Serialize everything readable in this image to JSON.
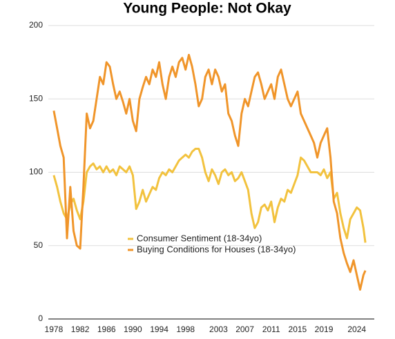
{
  "chart_data": {
    "type": "line",
    "title": "Young People: Not Okay",
    "x": [
      1978,
      1978.5,
      1979,
      1979.5,
      1980,
      1980.5,
      1981,
      1981.5,
      1982,
      1982.5,
      1983,
      1983.5,
      1984,
      1984.5,
      1985,
      1985.5,
      1986,
      1986.5,
      1987,
      1987.5,
      1988,
      1988.5,
      1989,
      1989.5,
      1990,
      1990.5,
      1991,
      1991.5,
      1992,
      1992.5,
      1993,
      1993.5,
      1994,
      1994.5,
      1995,
      1995.5,
      1996,
      1996.5,
      1997,
      1997.5,
      1998,
      1998.5,
      1999,
      1999.5,
      2000,
      2000.5,
      2001,
      2001.5,
      2002,
      2002.5,
      2003,
      2003.5,
      2004,
      2004.5,
      2005,
      2005.5,
      2006,
      2006.5,
      2007,
      2007.5,
      2008,
      2008.5,
      2009,
      2009.5,
      2010,
      2010.5,
      2011,
      2011.5,
      2012,
      2012.5,
      2013,
      2013.5,
      2014,
      2014.5,
      2015,
      2015.5,
      2016,
      2016.5,
      2017,
      2017.5,
      2018,
      2018.5,
      2019,
      2019.5,
      2020,
      2020.5,
      2021,
      2021.5,
      2022,
      2022.5,
      2023,
      2023.5,
      2024,
      2024.5,
      2025,
      2025.3
    ],
    "series": [
      {
        "name": "Consumer Sentiment (18-34yo)",
        "color": "#f2c23e",
        "values": [
          98,
          90,
          80,
          72,
          68,
          78,
          82,
          74,
          68,
          80,
          100,
          104,
          106,
          102,
          104,
          100,
          104,
          100,
          102,
          98,
          104,
          102,
          100,
          104,
          98,
          75,
          80,
          88,
          80,
          85,
          90,
          88,
          96,
          100,
          98,
          102,
          100,
          104,
          108,
          110,
          112,
          110,
          114,
          116,
          116,
          110,
          100,
          94,
          102,
          98,
          92,
          100,
          102,
          98,
          100,
          94,
          96,
          100,
          94,
          88,
          72,
          62,
          66,
          76,
          78,
          74,
          80,
          66,
          76,
          82,
          80,
          88,
          86,
          92,
          98,
          110,
          108,
          104,
          100,
          100,
          100,
          98,
          102,
          96,
          100,
          82,
          86,
          72,
          62,
          55,
          68,
          72,
          76,
          74,
          62,
          52
        ]
      },
      {
        "name": "Buying Conditions for Houses (18-34yo)",
        "color": "#f0952a",
        "values": [
          142,
          130,
          118,
          110,
          55,
          90,
          60,
          50,
          48,
          90,
          140,
          130,
          135,
          150,
          165,
          160,
          175,
          172,
          160,
          150,
          155,
          148,
          140,
          150,
          135,
          128,
          150,
          158,
          165,
          160,
          170,
          165,
          175,
          160,
          150,
          165,
          172,
          165,
          175,
          178,
          170,
          180,
          172,
          160,
          145,
          150,
          165,
          170,
          160,
          170,
          165,
          155,
          160,
          140,
          135,
          125,
          118,
          140,
          150,
          145,
          155,
          165,
          168,
          160,
          150,
          155,
          160,
          150,
          165,
          170,
          160,
          150,
          145,
          150,
          155,
          140,
          135,
          130,
          125,
          120,
          110,
          120,
          125,
          130,
          110,
          80,
          72,
          55,
          45,
          38,
          32,
          40,
          30,
          20,
          30,
          33
        ]
      }
    ],
    "xlim": [
      1977.8,
      2025.6
    ],
    "xticks": [
      1978,
      1982,
      1986,
      1990,
      1994,
      1998,
      2003,
      2007,
      2011,
      2015,
      2019,
      2024
    ],
    "ylim": [
      0,
      200
    ],
    "yticks": [
      0,
      50,
      100,
      150,
      200
    ],
    "grid": true
  }
}
